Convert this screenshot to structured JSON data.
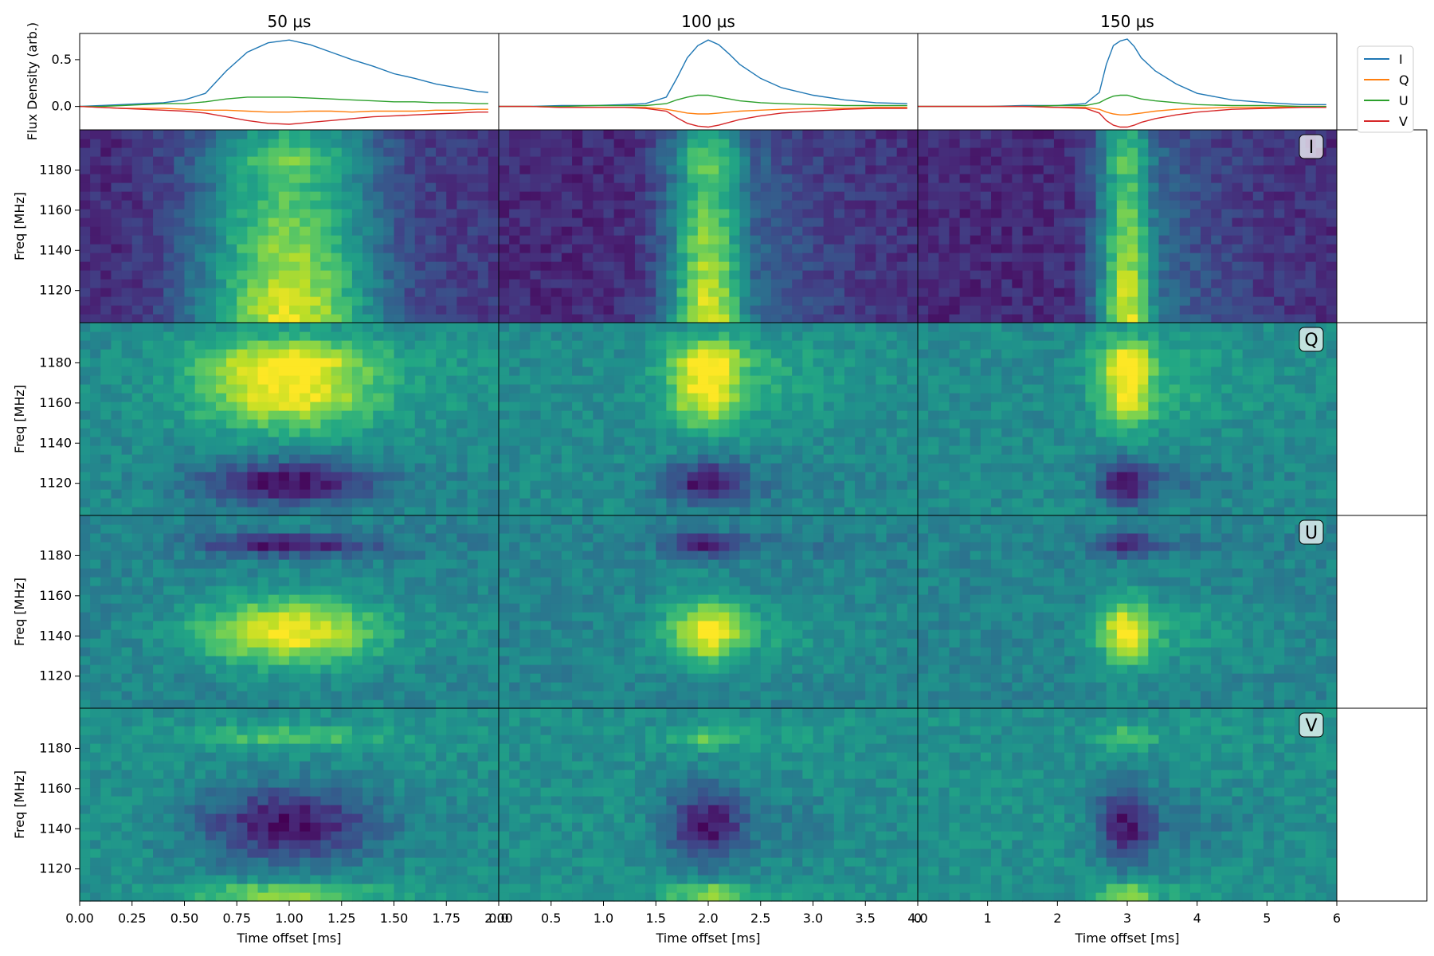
{
  "chart_data": {
    "type": "heatmap",
    "columns": [
      {
        "title": "50 μs",
        "xlim": [
          0,
          2
        ],
        "xticks": [
          0,
          0.25,
          0.5,
          0.75,
          1.0,
          1.25,
          1.5,
          1.75,
          2.0
        ],
        "xtick_labels": [
          "0.00",
          "0.25",
          "0.50",
          "0.75",
          "1.00",
          "1.25",
          "1.50",
          "1.75",
          "2.00"
        ],
        "xlabel": "Time offset [ms]",
        "burst_center_ms": 1.0,
        "burst_width_ms": 0.3,
        "scatter_tail_ms": 0.45,
        "n_time_bins": 40,
        "profile": {
          "t": [
            0,
            0.1,
            0.2,
            0.3,
            0.4,
            0.5,
            0.6,
            0.7,
            0.8,
            0.9,
            1.0,
            1.1,
            1.2,
            1.3,
            1.4,
            1.5,
            1.6,
            1.7,
            1.8,
            1.9,
            1.95
          ],
          "I": [
            0.0,
            0.01,
            0.02,
            0.03,
            0.04,
            0.07,
            0.14,
            0.38,
            0.58,
            0.68,
            0.71,
            0.66,
            0.58,
            0.5,
            0.43,
            0.35,
            0.3,
            0.24,
            0.2,
            0.16,
            0.15
          ],
          "Q": [
            0.0,
            -0.01,
            -0.02,
            -0.02,
            -0.02,
            -0.03,
            -0.04,
            -0.04,
            -0.05,
            -0.06,
            -0.06,
            -0.05,
            -0.05,
            -0.06,
            -0.05,
            -0.05,
            -0.05,
            -0.04,
            -0.04,
            -0.03,
            -0.03
          ],
          "U": [
            0.0,
            0.0,
            0.01,
            0.02,
            0.03,
            0.03,
            0.05,
            0.08,
            0.1,
            0.1,
            0.1,
            0.09,
            0.08,
            0.07,
            0.06,
            0.05,
            0.05,
            0.04,
            0.04,
            0.03,
            0.03
          ],
          "V": [
            0.0,
            -0.01,
            -0.02,
            -0.03,
            -0.04,
            -0.05,
            -0.07,
            -0.11,
            -0.15,
            -0.18,
            -0.19,
            -0.17,
            -0.15,
            -0.13,
            -0.11,
            -0.1,
            -0.09,
            -0.08,
            -0.07,
            -0.06,
            -0.06
          ]
        }
      },
      {
        "title": "100 μs",
        "xlim": [
          0,
          4
        ],
        "xticks": [
          0,
          0.5,
          1.0,
          1.5,
          2.0,
          2.5,
          3.0,
          3.5,
          4.0
        ],
        "xtick_labels": [
          "0.0",
          "0.5",
          "1.0",
          "1.5",
          "2.0",
          "2.5",
          "3.0",
          "3.5",
          "4.0"
        ],
        "xlabel": "Time offset [ms]",
        "burst_center_ms": 2.0,
        "burst_width_ms": 0.28,
        "scatter_tail_ms": 0.7,
        "n_time_bins": 40,
        "profile": {
          "t": [
            0,
            0.3,
            0.6,
            0.9,
            1.2,
            1.4,
            1.6,
            1.7,
            1.8,
            1.9,
            2.0,
            2.1,
            2.2,
            2.3,
            2.5,
            2.7,
            3.0,
            3.3,
            3.6,
            3.9
          ],
          "I": [
            0.0,
            0.0,
            0.01,
            0.01,
            0.02,
            0.03,
            0.1,
            0.3,
            0.52,
            0.65,
            0.71,
            0.66,
            0.56,
            0.45,
            0.3,
            0.2,
            0.12,
            0.07,
            0.04,
            0.03
          ],
          "Q": [
            0.0,
            0.0,
            -0.01,
            -0.01,
            -0.01,
            -0.01,
            -0.03,
            -0.05,
            -0.07,
            -0.08,
            -0.08,
            -0.07,
            -0.06,
            -0.05,
            -0.04,
            -0.03,
            -0.02,
            -0.02,
            -0.01,
            -0.01
          ],
          "U": [
            0.0,
            0.0,
            0.0,
            0.01,
            0.01,
            0.01,
            0.03,
            0.07,
            0.1,
            0.12,
            0.12,
            0.1,
            0.08,
            0.06,
            0.04,
            0.03,
            0.02,
            0.01,
            0.01,
            0.01
          ],
          "V": [
            0.0,
            0.0,
            -0.01,
            -0.01,
            -0.01,
            -0.02,
            -0.05,
            -0.12,
            -0.18,
            -0.21,
            -0.22,
            -0.2,
            -0.17,
            -0.14,
            -0.1,
            -0.07,
            -0.05,
            -0.03,
            -0.02,
            -0.02
          ]
        }
      },
      {
        "title": "150 μs",
        "xlim": [
          0,
          6
        ],
        "xticks": [
          0,
          1,
          2,
          3,
          4,
          5,
          6
        ],
        "xtick_labels": [
          "0",
          "1",
          "2",
          "3",
          "4",
          "5",
          "6"
        ],
        "xlabel": "Time offset [ms]",
        "burst_center_ms": 3.0,
        "burst_width_ms": 0.3,
        "scatter_tail_ms": 0.9,
        "n_time_bins": 40,
        "profile": {
          "t": [
            0,
            0.5,
            1.0,
            1.5,
            2.0,
            2.4,
            2.6,
            2.7,
            2.8,
            2.9,
            3.0,
            3.1,
            3.2,
            3.4,
            3.7,
            4.0,
            4.5,
            5.0,
            5.5,
            5.85
          ],
          "I": [
            0.0,
            0.0,
            0.0,
            0.01,
            0.01,
            0.03,
            0.15,
            0.45,
            0.65,
            0.7,
            0.72,
            0.64,
            0.52,
            0.38,
            0.24,
            0.14,
            0.07,
            0.04,
            0.02,
            0.02
          ],
          "Q": [
            0.0,
            0.0,
            0.0,
            0.0,
            -0.01,
            -0.01,
            -0.03,
            -0.06,
            -0.08,
            -0.09,
            -0.09,
            -0.08,
            -0.07,
            -0.05,
            -0.03,
            -0.02,
            -0.01,
            -0.01,
            0.0,
            0.0
          ],
          "U": [
            0.0,
            0.0,
            0.0,
            0.0,
            0.01,
            0.01,
            0.04,
            0.08,
            0.11,
            0.12,
            0.12,
            0.1,
            0.08,
            0.06,
            0.04,
            0.02,
            0.01,
            0.01,
            0.0,
            0.0
          ],
          "V": [
            0.0,
            0.0,
            0.0,
            0.0,
            -0.01,
            -0.02,
            -0.07,
            -0.15,
            -0.2,
            -0.22,
            -0.22,
            -0.2,
            -0.17,
            -0.13,
            -0.09,
            -0.06,
            -0.03,
            -0.02,
            -0.01,
            -0.01
          ]
        }
      }
    ],
    "profile_panel": {
      "ylabel": "Flux Density (arb.)",
      "ylim": [
        -0.25,
        0.78
      ],
      "yticks": [
        0.0,
        0.5
      ],
      "ytick_labels": [
        "0.0",
        "0.5"
      ]
    },
    "rows": [
      {
        "stokes": "I",
        "ylabel": "Freq [MHz]",
        "spectrum": [
          1.0,
          0.97,
          0.92,
          0.9,
          0.84,
          0.75,
          0.68,
          0.65,
          0.6,
          0.57,
          0.53,
          0.5,
          0.48,
          0.46,
          0.45,
          0.45,
          0.45,
          0.44,
          0.43,
          0.4,
          0.33,
          0.4,
          0.45,
          0.52,
          0.5,
          0.42
        ],
        "spectrum_ref": 0.0
      },
      {
        "stokes": "Q",
        "ylabel": "Freq [MHz]",
        "spectrum": [
          -0.55,
          -0.58,
          -0.6,
          -0.6,
          -0.58,
          -0.5,
          -0.42,
          -0.3,
          -0.18,
          -0.05,
          0.1,
          0.25,
          0.38,
          0.5,
          0.62,
          0.68,
          0.78,
          0.82,
          0.75,
          0.82,
          0.85,
          0.78,
          0.85,
          0.9,
          0.85,
          0.7
        ],
        "spectrum_ref": 0.45
      },
      {
        "stokes": "U",
        "ylabel": "Freq [MHz]",
        "spectrum": [
          -0.6,
          -0.35,
          -0.1,
          0.15,
          0.35,
          0.5,
          0.62,
          0.72,
          0.8,
          0.86,
          0.9,
          0.85,
          0.8,
          0.72,
          0.6,
          0.45,
          0.3,
          0.15,
          0.05,
          -0.1,
          -0.25,
          -0.38,
          -0.45,
          -0.5,
          -0.35,
          -0.2
        ],
        "spectrum_ref": 0.0
      },
      {
        "stokes": "V",
        "ylabel": "Freq [MHz]",
        "spectrum": [
          0.85,
          0.6,
          0.3,
          0.1,
          -0.1,
          -0.2,
          -0.3,
          -0.38,
          -0.45,
          -0.52,
          -0.5,
          -0.44,
          -0.38,
          -0.3,
          -0.2,
          -0.1,
          0.0,
          0.1,
          0.2,
          0.32,
          0.42,
          0.55,
          0.62,
          0.7,
          0.65,
          0.5
        ],
        "spectrum_ref": 0.45
      }
    ],
    "freq_range_mhz": [
      1104,
      1200
    ],
    "freq_ticks": [
      1120,
      1140,
      1160,
      1180
    ],
    "n_freq_bins": 22,
    "legend": {
      "placement": "upper-right, outside",
      "entries": [
        {
          "label": "I",
          "color": "#1f77b4"
        },
        {
          "label": "Q",
          "color": "#ff7f0e"
        },
        {
          "label": "U",
          "color": "#2ca02c"
        },
        {
          "label": "V",
          "color": "#d62728"
        }
      ]
    },
    "colormap": "viridis",
    "grid": false
  }
}
